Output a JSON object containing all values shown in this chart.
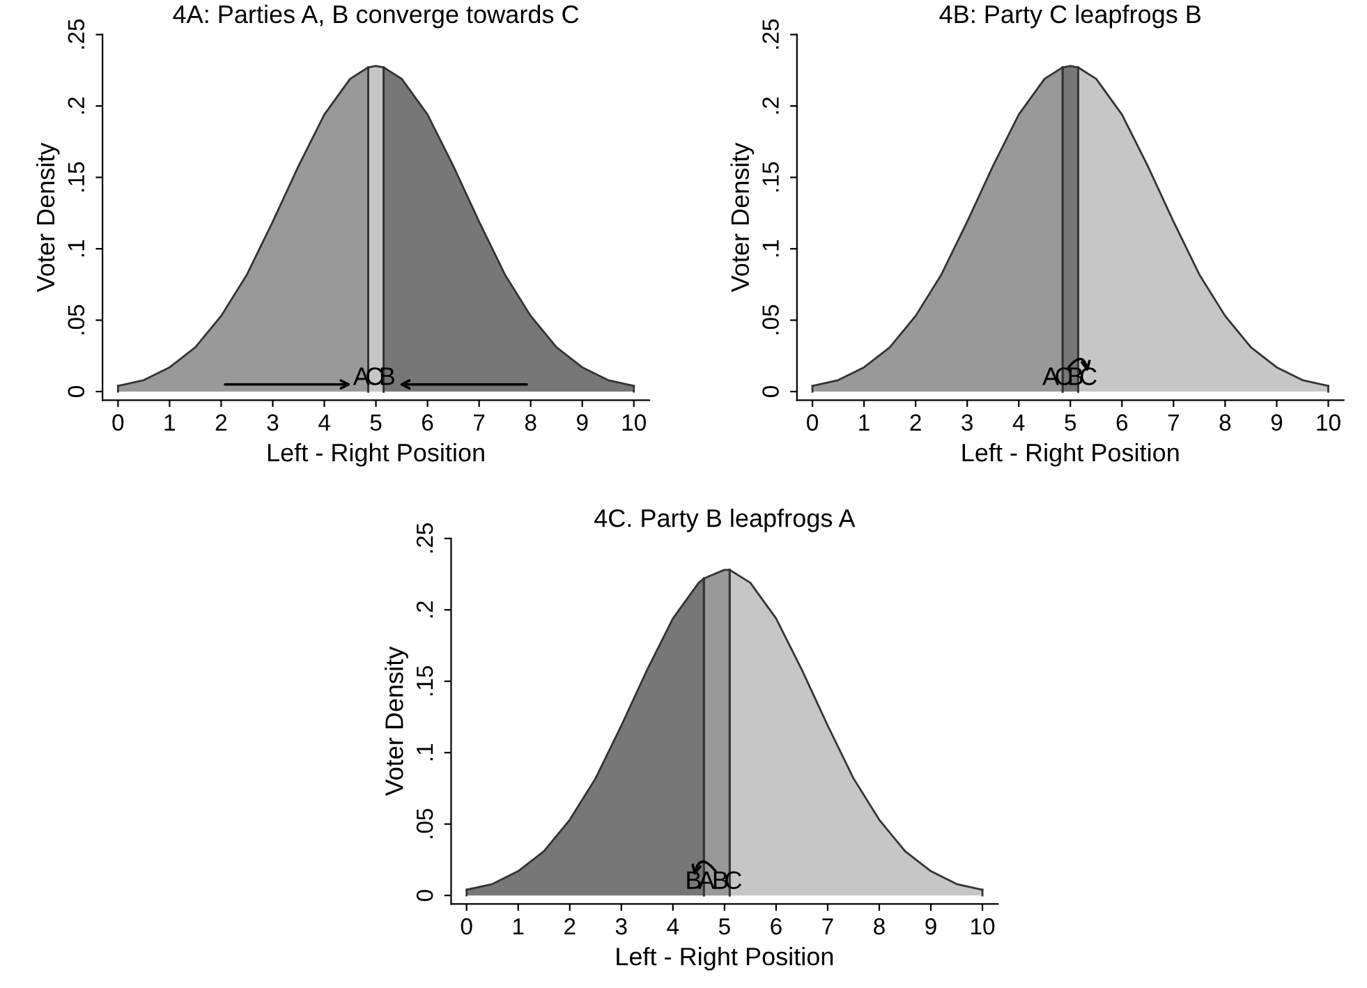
{
  "chart_data": [
    {
      "type": "area",
      "title": "4A: Parties A, B converge towards C",
      "xlabel": "Left - Right Position",
      "ylabel": "Voter Density",
      "xlim": [
        -0.3,
        10.3
      ],
      "ylim": [
        -0.006,
        0.25
      ],
      "xticks": [
        0,
        1,
        2,
        3,
        4,
        5,
        6,
        7,
        8,
        9,
        10
      ],
      "yticks": [
        0,
        {
          "value": 0.05,
          "label": ".05"
        },
        {
          "value": 0.1,
          "label": ".1"
        },
        {
          "value": 0.15,
          "label": ".15"
        },
        {
          "value": 0.2,
          "label": ".2"
        },
        {
          "value": 0.25,
          "label": ".25"
        }
      ],
      "grid": false,
      "legend": false,
      "series": [
        {
          "color": "#999999",
          "x": [
            0,
            0.5,
            1,
            1.5,
            2,
            2.5,
            3,
            3.5,
            4,
            4.5,
            4.85
          ],
          "values": [
            0.004,
            0.008,
            0.017,
            0.031,
            0.053,
            0.082,
            0.119,
            0.158,
            0.194,
            0.219,
            0.227
          ]
        },
        {
          "color": "#c6c6c6",
          "x": [
            4.85,
            5,
            5.15
          ],
          "values": [
            0.227,
            0.228,
            0.227
          ]
        },
        {
          "color": "#777777",
          "x": [
            5.15,
            5.5,
            6,
            6.5,
            7,
            7.5,
            8,
            8.5,
            9,
            9.5,
            10
          ],
          "values": [
            0.227,
            0.219,
            0.194,
            0.158,
            0.119,
            0.082,
            0.053,
            0.031,
            0.017,
            0.008,
            0.004
          ]
        }
      ],
      "annotations": [
        {
          "text": "A",
          "x": 4.72,
          "y": 0.001
        },
        {
          "text": "C",
          "x": 4.97,
          "y": 0.001
        },
        {
          "text": "B",
          "x": 5.22,
          "y": 0.001
        }
      ]
    },
    {
      "type": "area",
      "title": "4B: Party C leapfrogs B",
      "xlabel": "Left - Right Position",
      "ylabel": "Voter Density",
      "xlim": [
        -0.3,
        10.3
      ],
      "ylim": [
        -0.006,
        0.25
      ],
      "xticks": [
        0,
        1,
        2,
        3,
        4,
        5,
        6,
        7,
        8,
        9,
        10
      ],
      "yticks": [
        0,
        {
          "value": 0.05,
          "label": ".05"
        },
        {
          "value": 0.1,
          "label": ".1"
        },
        {
          "value": 0.15,
          "label": ".15"
        },
        {
          "value": 0.2,
          "label": ".2"
        },
        {
          "value": 0.25,
          "label": ".25"
        }
      ],
      "grid": false,
      "legend": false,
      "series": [
        {
          "color": "#999999",
          "x": [
            0,
            0.5,
            1,
            1.5,
            2,
            2.5,
            3,
            3.5,
            4,
            4.5,
            4.85
          ],
          "values": [
            0.004,
            0.008,
            0.017,
            0.031,
            0.053,
            0.082,
            0.119,
            0.158,
            0.194,
            0.219,
            0.227
          ]
        },
        {
          "color": "#777777",
          "x": [
            4.85,
            5,
            5.15
          ],
          "values": [
            0.227,
            0.228,
            0.227
          ]
        },
        {
          "color": "#c6c6c6",
          "x": [
            5.15,
            5.5,
            6,
            6.5,
            7,
            7.5,
            8,
            8.5,
            9,
            9.5,
            10
          ],
          "values": [
            0.227,
            0.219,
            0.194,
            0.158,
            0.119,
            0.082,
            0.053,
            0.031,
            0.017,
            0.008,
            0.004
          ]
        }
      ],
      "annotations": [
        {
          "text": "A",
          "x": 4.62,
          "y": 0.001
        },
        {
          "text": "C",
          "x": 4.87,
          "y": 0.001
        },
        {
          "text": "B",
          "x": 5.1,
          "y": 0.001
        },
        {
          "text": "C",
          "x": 5.35,
          "y": 0.001
        }
      ]
    },
    {
      "type": "area",
      "title": "4C. Party B leapfrogs A",
      "xlabel": "Left - Right Position",
      "ylabel": "Voter Density",
      "xlim": [
        -0.3,
        10.3
      ],
      "ylim": [
        -0.006,
        0.25
      ],
      "xticks": [
        0,
        1,
        2,
        3,
        4,
        5,
        6,
        7,
        8,
        9,
        10
      ],
      "yticks": [
        0,
        {
          "value": 0.05,
          "label": ".05"
        },
        {
          "value": 0.1,
          "label": ".1"
        },
        {
          "value": 0.15,
          "label": ".15"
        },
        {
          "value": 0.2,
          "label": ".2"
        },
        {
          "value": 0.25,
          "label": ".25"
        }
      ],
      "grid": false,
      "legend": false,
      "series": [
        {
          "color": "#777777",
          "x": [
            0,
            0.5,
            1,
            1.5,
            2,
            2.5,
            3,
            3.5,
            4,
            4.5,
            4.6
          ],
          "values": [
            0.004,
            0.008,
            0.017,
            0.031,
            0.053,
            0.082,
            0.119,
            0.158,
            0.194,
            0.219,
            0.222
          ]
        },
        {
          "color": "#999999",
          "x": [
            4.6,
            5,
            5.1
          ],
          "values": [
            0.222,
            0.228,
            0.228
          ]
        },
        {
          "color": "#c6c6c6",
          "x": [
            5.1,
            5.5,
            6,
            6.5,
            7,
            7.5,
            8,
            8.5,
            9,
            9.5,
            10
          ],
          "values": [
            0.228,
            0.219,
            0.194,
            0.158,
            0.119,
            0.082,
            0.053,
            0.031,
            0.017,
            0.008,
            0.004
          ]
        }
      ],
      "annotations": [
        {
          "text": "B",
          "x": 4.4,
          "y": 0.001
        },
        {
          "text": "A",
          "x": 4.65,
          "y": 0.001
        },
        {
          "text": "B",
          "x": 4.92,
          "y": 0.001
        },
        {
          "text": "C",
          "x": 5.17,
          "y": 0.001
        }
      ]
    }
  ]
}
